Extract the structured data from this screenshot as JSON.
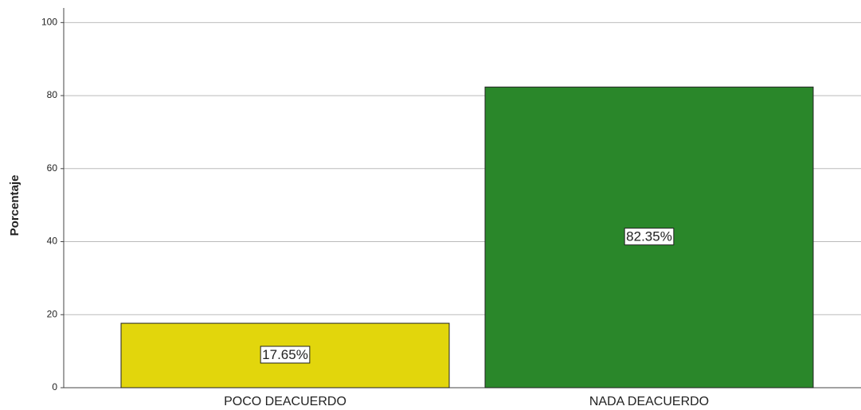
{
  "chart_data": {
    "type": "bar",
    "y_label": "Porcentaje",
    "categories": [
      "POCO DEACUERDO",
      "NADA DEACUERDO"
    ],
    "values": [
      17.65,
      82.35
    ],
    "value_labels": [
      "17.65%",
      "82.35%"
    ],
    "colors": [
      "#e2d60c",
      "#2a872a"
    ],
    "ylim": [
      0,
      104
    ],
    "yticks": [
      0,
      20,
      40,
      60,
      80,
      100
    ],
    "grid": true
  }
}
